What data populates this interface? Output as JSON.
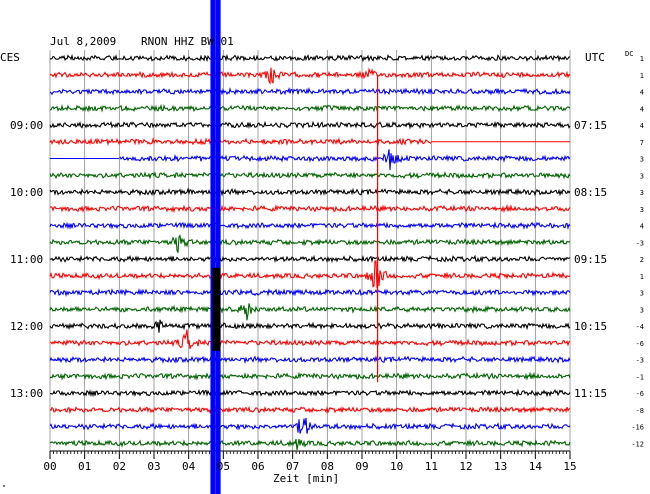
{
  "header": {
    "date": "Jul 8,2009",
    "station": "RNON HHZ BW 01",
    "left_zone": "CES",
    "right_zone": "UTC",
    "dc_label": "DC"
  },
  "footer": {
    "xlabel": "Zeit [min]",
    "corner_mark": "\""
  },
  "chart_data": {
    "type": "seismogram",
    "title": "Jul 8,2009   RNON HHZ BW 01",
    "xlabel": "Zeit [min]",
    "xlim": [
      0,
      15
    ],
    "x_ticks": [
      "00",
      "01",
      "02",
      "03",
      "04",
      "05",
      "06",
      "07",
      "08",
      "09",
      "10",
      "11",
      "12",
      "13",
      "14",
      "15"
    ],
    "trace_colors": [
      "#000000",
      "#ff0000",
      "#0000ff",
      "#006400"
    ],
    "traces": 24,
    "trace_interval_min": 15,
    "left_time_labels": [
      {
        "trace": 4,
        "label": "09:00"
      },
      {
        "trace": 8,
        "label": "10:00"
      },
      {
        "trace": 12,
        "label": "11:00"
      },
      {
        "trace": 16,
        "label": "12:00"
      },
      {
        "trace": 20,
        "label": "13:00"
      }
    ],
    "right_time_labels": [
      {
        "trace": 4,
        "label": "07:15"
      },
      {
        "trace": 8,
        "label": "08:15"
      },
      {
        "trace": 12,
        "label": "09:15"
      },
      {
        "trace": 16,
        "label": "10:15"
      },
      {
        "trace": 20,
        "label": "11:15"
      }
    ],
    "dc_offsets": [
      "1",
      "1",
      "4",
      "4",
      "4",
      "7",
      "3",
      "3",
      "3",
      "3",
      "4",
      "-3",
      "2",
      "1",
      "3",
      "3",
      "-4",
      "-6",
      "-3",
      "-1",
      "-6",
      "-8",
      "-16",
      "-12"
    ],
    "data_gaps": [
      {
        "trace": 5,
        "from_min": 11.0,
        "to_min": 15.0
      },
      {
        "trace": 6,
        "from_min": 0.0,
        "to_min": 2.0
      }
    ],
    "events": [
      {
        "trace": 1,
        "minute": 6.4,
        "amplitude": 12
      },
      {
        "trace": 1,
        "minute": 9.2,
        "amplitude": 5
      },
      {
        "trace": 6,
        "minute": 9.8,
        "amplitude": 12
      },
      {
        "trace": 11,
        "minute": 3.7,
        "amplitude": 10
      },
      {
        "trace": 13,
        "minute": 9.4,
        "amplitude": 22
      },
      {
        "trace": 15,
        "minute": 5.7,
        "amplitude": 12
      },
      {
        "trace": 16,
        "minute": 3.1,
        "amplitude": 7
      },
      {
        "trace": 17,
        "minute": 3.95,
        "amplitude": 12
      },
      {
        "trace": 22,
        "minute": 7.3,
        "amplitude": 16
      },
      {
        "trace": 23,
        "minute": 7.1,
        "amplitude": 6
      }
    ],
    "vertical_marks": [
      {
        "minute": 4.7,
        "color": "#0000ff",
        "kind": "band"
      },
      {
        "minute": 4.85,
        "color": "#0000ff",
        "kind": "band"
      },
      {
        "minute": 9.45,
        "color": "#ff0000",
        "kind": "line"
      }
    ],
    "large_event": {
      "minute": 4.8,
      "traces": [
        13,
        14,
        15,
        16,
        17
      ],
      "color": "#000000"
    }
  }
}
